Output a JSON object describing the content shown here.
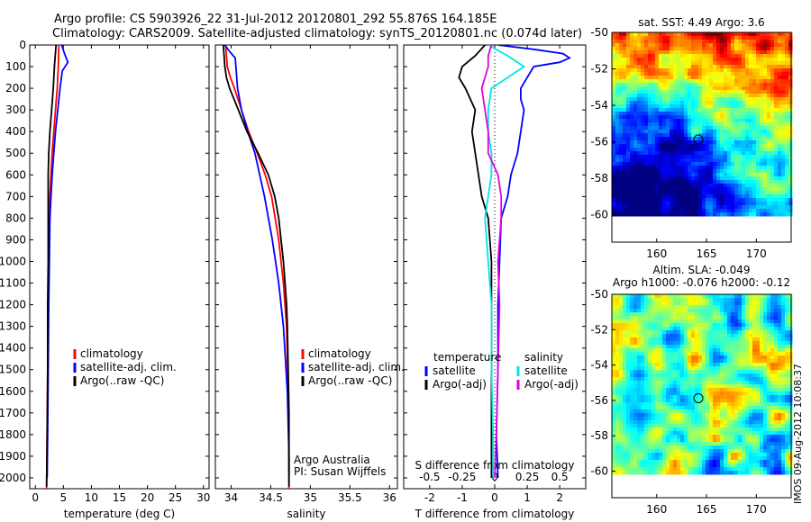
{
  "figure": {
    "title_line1": "Argo profile: CS 5903926_22 31-Jul-2012 20120801_292 55.876S 164.185E",
    "title_line2": "Climatology: CARS2009. Satellite-adjusted climatology: synTS_20120801.nc (0.074d later)",
    "timestamp": "IMOS 09-Aug-2012 10:08:37"
  },
  "colors": {
    "climatology": "#ff0000",
    "satellite": "#0000ff",
    "argo": "#000000",
    "satellite_diff": "#00e5e5",
    "argo_diff": "#e000e0"
  },
  "chart_data": [
    {
      "id": "temperature",
      "type": "line",
      "xlabel": "temperature (deg C)",
      "ylabel": "",
      "xlim": [
        -1,
        31
      ],
      "ylim": [
        2050,
        0
      ],
      "xticks": [
        0,
        5,
        10,
        15,
        20,
        25,
        30
      ],
      "yticks": [
        0,
        100,
        200,
        300,
        400,
        500,
        600,
        700,
        800,
        900,
        1000,
        1100,
        1200,
        1300,
        1400,
        1500,
        1600,
        1700,
        1800,
        1900,
        2000
      ],
      "legend": [
        "climatology",
        "satellite-adj. clim.",
        "Argo(..raw -QC)"
      ],
      "legend_position": "lower-left",
      "series": [
        {
          "name": "climatology",
          "color": "#ff0000",
          "depth": [
            0,
            100,
            200,
            300,
            400,
            500,
            600,
            700,
            800,
            1000,
            1200,
            1500,
            1800,
            2050
          ],
          "value": [
            4.2,
            4.1,
            3.9,
            3.6,
            3.3,
            3.0,
            2.8,
            2.6,
            2.5,
            2.4,
            2.3,
            2.2,
            2.1,
            2.0
          ]
        },
        {
          "name": "satellite-adj. clim.",
          "color": "#0000ff",
          "depth": [
            0,
            40,
            80,
            120,
            200,
            300,
            400,
            500,
            600,
            700,
            800,
            1000,
            1200,
            1500,
            1800,
            2000
          ],
          "value": [
            4.7,
            5.2,
            5.8,
            4.8,
            4.4,
            4.0,
            3.6,
            3.3,
            3.0,
            2.8,
            2.6,
            2.5,
            2.4,
            2.3,
            2.2,
            2.1
          ]
        },
        {
          "name": "Argo(..raw -QC)",
          "color": "#000000",
          "depth": [
            0,
            100,
            200,
            300,
            400,
            500,
            600,
            700,
            800,
            1000,
            1200,
            1500,
            1800,
            2040
          ],
          "value": [
            3.7,
            3.4,
            3.2,
            2.9,
            2.6,
            2.4,
            2.3,
            2.3,
            2.3,
            2.3,
            2.2,
            2.2,
            2.1,
            2.0
          ]
        }
      ]
    },
    {
      "id": "salinity",
      "type": "line",
      "xlabel": "salinity",
      "xlim": [
        33.8,
        36.1
      ],
      "ylim": [
        2050,
        0
      ],
      "xticks": [
        34,
        34.5,
        35,
        35.5,
        36
      ],
      "legend": [
        "climatology",
        "satellite-adj. clim.",
        "Argo(..raw -QC)"
      ],
      "legend_position": "lower-right",
      "annotations": [
        "Argo Australia",
        "PI: Susan Wijffels"
      ],
      "series": [
        {
          "name": "climatology",
          "color": "#ff0000",
          "depth": [
            0,
            50,
            100,
            150,
            200,
            300,
            400,
            500,
            600,
            700,
            900,
            1100,
            1300,
            1600,
            1900,
            2050
          ],
          "value": [
            33.93,
            33.94,
            33.95,
            33.99,
            34.04,
            34.13,
            34.22,
            34.33,
            34.43,
            34.51,
            34.6,
            34.66,
            34.7,
            34.72,
            34.73,
            34.73
          ]
        },
        {
          "name": "satellite-adj. clim.",
          "color": "#0000ff",
          "depth": [
            0,
            30,
            60,
            100,
            150,
            200,
            300,
            400,
            500,
            600,
            700,
            900,
            1100,
            1300,
            1600,
            1900,
            1980
          ],
          "value": [
            33.92,
            33.98,
            34.05,
            34.06,
            34.07,
            34.08,
            34.13,
            34.21,
            34.3,
            34.36,
            34.42,
            34.52,
            34.6,
            34.66,
            34.71,
            34.73,
            34.73
          ]
        },
        {
          "name": "Argo(..raw -QC)",
          "color": "#000000",
          "depth": [
            0,
            50,
            100,
            150,
            200,
            300,
            400,
            500,
            600,
            700,
            800,
            900,
            1000,
            1100,
            1200,
            1300,
            1500,
            1700,
            1900,
            2040
          ],
          "value": [
            33.9,
            33.91,
            33.92,
            33.94,
            33.98,
            34.09,
            34.2,
            34.34,
            34.47,
            34.55,
            34.6,
            34.63,
            34.66,
            34.68,
            34.7,
            34.71,
            34.72,
            34.73,
            34.73,
            34.73
          ]
        }
      ]
    },
    {
      "id": "difference",
      "type": "line",
      "xlabel": "T difference from climatology",
      "xlabel_top": "S difference from climatology",
      "xlim": [
        -2.8,
        2.8
      ],
      "ylim": [
        2050,
        0
      ],
      "xticks": [
        -2,
        -1,
        0,
        1,
        2
      ],
      "xticks_top_labels": [
        "-0.5",
        "-0.25",
        "0",
        "0.25",
        "0.5"
      ],
      "xticks_top_positions": [
        -2,
        -1,
        0,
        1,
        2
      ],
      "legend": {
        "temperature": [
          "satellite",
          "Argo(-adj)"
        ],
        "salinity": [
          "satellite",
          "Argo(-adj)"
        ]
      },
      "legend_headers": [
        "temperature",
        "salinity"
      ],
      "legend_position": "lower-center",
      "series": [
        {
          "name": "temperature satellite",
          "color": "#0000ff",
          "depth": [
            0,
            20,
            40,
            60,
            80,
            100,
            150,
            200,
            250,
            300,
            400,
            500,
            600,
            700,
            800,
            1000,
            1200,
            1500,
            1800,
            2000
          ],
          "value": [
            0.1,
            1.2,
            2.1,
            2.3,
            2.0,
            1.2,
            1.0,
            0.8,
            0.8,
            0.9,
            0.8,
            0.7,
            0.5,
            0.4,
            0.2,
            0.15,
            0.1,
            0.1,
            0.05,
            0.1
          ]
        },
        {
          "name": "temperature Argo(-adj)",
          "color": "#000000",
          "depth": [
            0,
            50,
            100,
            150,
            200,
            300,
            400,
            500,
            600,
            700,
            800,
            1000,
            1200,
            1500,
            1800,
            2000
          ],
          "value": [
            -0.3,
            -0.6,
            -1.0,
            -1.1,
            -0.9,
            -0.6,
            -0.7,
            -0.6,
            -0.5,
            -0.4,
            -0.2,
            -0.1,
            -0.1,
            -0.1,
            -0.1,
            -0.1
          ]
        },
        {
          "name": "salinity satellite",
          "color": "#00e5e5",
          "depth": [
            0,
            50,
            100,
            150,
            200,
            300,
            400,
            500,
            600,
            700,
            800,
            1000,
            1200,
            1500,
            1800,
            2000
          ],
          "value": [
            -0.2,
            0.4,
            0.9,
            0.4,
            -0.1,
            -0.2,
            -0.2,
            -0.1,
            -0.1,
            -0.2,
            -0.3,
            -0.2,
            -0.1,
            -0.1,
            -0.05,
            -0.05
          ]
        },
        {
          "name": "salinity Argo(-adj)",
          "color": "#e000e0",
          "depth": [
            0,
            50,
            100,
            150,
            200,
            300,
            400,
            500,
            600,
            700,
            800,
            1000,
            1200,
            1500,
            1800,
            2000
          ],
          "value": [
            -0.1,
            -0.2,
            -0.2,
            -0.3,
            -0.4,
            -0.3,
            -0.2,
            -0.2,
            0.1,
            0.2,
            0.2,
            0.1,
            0.15,
            0.1,
            0.05,
            0.0
          ]
        }
      ]
    },
    {
      "id": "sst_map",
      "type": "heatmap",
      "title": "sat. SST: 4.49  Argo: 3.6",
      "xticks": [
        160,
        165,
        170
      ],
      "yticks": [
        -50,
        -52,
        -54,
        -56,
        -58,
        -60
      ],
      "xlim": [
        155.5,
        173.5
      ],
      "ylim": [
        -61.5,
        -50
      ],
      "data_extent_lat": [
        -60,
        -50
      ],
      "argo_position": [
        164.185,
        -55.876
      ]
    },
    {
      "id": "sla_map",
      "type": "heatmap",
      "title_line1": "Altim. SLA: -0.049",
      "title_line2": "Argo h1000: -0.076 h2000: -0.12",
      "xticks": [
        160,
        165,
        170
      ],
      "yticks": [
        -50,
        -52,
        -54,
        -56,
        -58,
        -60
      ],
      "xlim": [
        155.5,
        173.5
      ],
      "ylim": [
        -61.5,
        -50
      ],
      "data_extent_lat": [
        -60,
        -50
      ],
      "argo_position": [
        164.185,
        -55.876
      ]
    }
  ]
}
